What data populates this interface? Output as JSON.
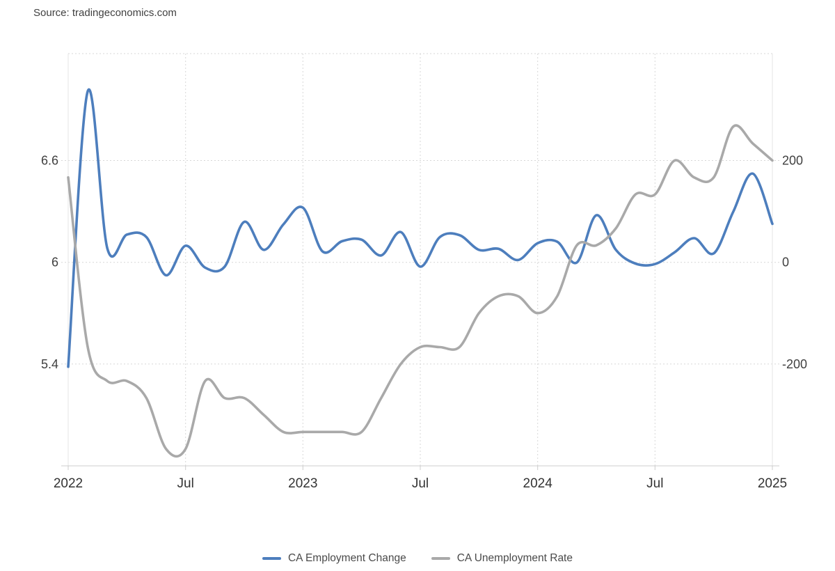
{
  "source": {
    "label": "Source: tradingeconomics.com"
  },
  "legend": {
    "items": [
      {
        "label": "CA Employment Change",
        "color": "#4d7ebd"
      },
      {
        "label": "CA Unemployment Rate",
        "color": "#a9a9a9"
      }
    ]
  },
  "colors": {
    "background": "#ffffff",
    "gridline": "#d7d7d7",
    "plot_border": "#e6e6e6",
    "axis_line": "#cccccc",
    "axis_label": "#404040",
    "x_label": "#333333",
    "employment_change_line": "#4d7ebd",
    "unemployment_rate_line": "#a9a9a9"
  },
  "chart_data": {
    "type": "line",
    "smoothing": "spline",
    "frequency": "monthly",
    "x_start": "Jan 2022",
    "x_end": "Jan 2025",
    "grid": "dotted",
    "legend_position": "bottom-center",
    "x_tick_labels": [
      "2022",
      "Jul",
      "2023",
      "Jul",
      "2024",
      "Jul",
      "2025"
    ],
    "x_tick_month_indices": [
      0,
      6,
      12,
      18,
      24,
      30,
      36
    ],
    "left_axis": {
      "label_for": "CA Unemployment Rate",
      "tick_values": [
        6.6,
        6,
        5.4
      ],
      "tick_labels": [
        "6.6",
        "6",
        "5.4"
      ],
      "min": 4.8,
      "max": 7.23
    },
    "right_axis": {
      "label_for": "CA Employment Change",
      "tick_values": [
        200,
        0,
        -200
      ],
      "tick_labels": [
        "200",
        "0",
        "-200"
      ],
      "min": -400,
      "max": 411
    },
    "series": [
      {
        "name": "CA Employment Change",
        "axis": "right",
        "unit": "thousands",
        "color": "#4d7ebd",
        "values": [
          -205,
          337,
          28,
          55,
          50,
          -25,
          33,
          -10,
          -8,
          80,
          25,
          75,
          108,
          22,
          42,
          45,
          14,
          60,
          -8,
          50,
          54,
          25,
          27,
          5,
          38,
          41,
          0,
          93,
          25,
          -2,
          -3,
          20,
          48,
          18,
          100,
          175,
          76
        ]
      },
      {
        "name": "CA Unemployment Rate",
        "axis": "left",
        "unit": "percent",
        "color": "#a9a9a9",
        "values": [
          6.5,
          5.5,
          5.3,
          5.3,
          5.2,
          4.9,
          4.9,
          5.3,
          5.2,
          5.2,
          5.1,
          5.0,
          5.0,
          5.0,
          5.0,
          5.0,
          5.2,
          5.4,
          5.5,
          5.5,
          5.5,
          5.7,
          5.8,
          5.8,
          5.7,
          5.8,
          6.1,
          6.1,
          6.2,
          6.4,
          6.4,
          6.6,
          6.5,
          6.5,
          6.8,
          6.7,
          6.6
        ]
      }
    ]
  }
}
